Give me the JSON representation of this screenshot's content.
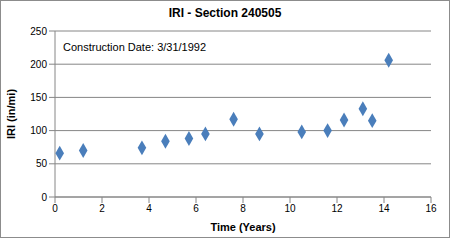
{
  "chart_data": {
    "type": "scatter",
    "title": "IRI - Section 240505",
    "annotations": [
      "Construction Date: 3/31/1992"
    ],
    "x_label": "Time (Years)",
    "y_label": "IRI (in/mi)",
    "x": [
      0.2,
      1.2,
      3.7,
      4.7,
      5.7,
      6.4,
      7.6,
      8.7,
      10.5,
      11.6,
      12.3,
      13.1,
      13.5,
      14.2
    ],
    "values": [
      66,
      70,
      74,
      84,
      88,
      95,
      117,
      95,
      98,
      100,
      116,
      133,
      115,
      206
    ],
    "color": "#4a7ebb",
    "marker": "diamond",
    "xlim": [
      0,
      16
    ],
    "xticks": [
      0,
      2,
      4,
      6,
      8,
      10,
      12,
      14,
      16
    ],
    "ylim": [
      0,
      250
    ],
    "yticks": [
      0,
      50,
      100,
      150,
      200,
      250
    ],
    "grid": true
  }
}
